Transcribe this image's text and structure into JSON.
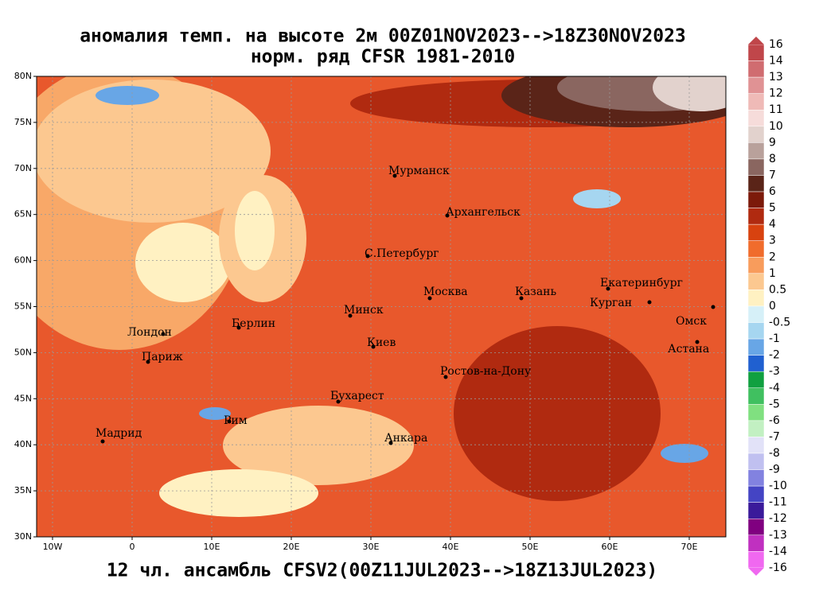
{
  "header": {
    "title_line1": "аномалия темп. на высоте 2м 00Z01NOV2023-->18Z30NOV2023",
    "title_line2": "норм. ряд CFSR 1981-2010"
  },
  "footer": "12 чл. ансамбль CFSV2(00Z11JUL2023-->18Z13JUL2023)",
  "map": {
    "xlim": [
      -12,
      74.6
    ],
    "ylim": [
      30,
      80
    ],
    "xticks": [
      {
        "value": -10,
        "label": "10W"
      },
      0,
      {
        "value": 10,
        "label": "10E"
      },
      {
        "value": 20,
        "label": "20E"
      },
      {
        "value": 30,
        "label": "30E"
      },
      {
        "value": 40,
        "label": "40E"
      },
      {
        "value": 50,
        "label": "50E"
      },
      {
        "value": 60,
        "label": "60E"
      },
      {
        "value": 70,
        "label": "70E"
      }
    ],
    "yticks": [
      {
        "value": 30,
        "label": "30N"
      },
      {
        "value": 35,
        "label": "35N"
      },
      {
        "value": 40,
        "label": "40N"
      },
      {
        "value": 45,
        "label": "45N"
      },
      {
        "value": 50,
        "label": "50N"
      },
      {
        "value": 55,
        "label": "55N"
      },
      {
        "value": 60,
        "label": "60N"
      },
      {
        "value": 65,
        "label": "65N"
      },
      {
        "value": 70,
        "label": "70N"
      },
      {
        "value": 75,
        "label": "75N"
      },
      {
        "value": 80,
        "label": "80N"
      }
    ],
    "cities": [
      "Мурманск",
      "Архангельск",
      "С.Петербург",
      "Москва",
      "Казань",
      "Екатеринбург",
      "Курган",
      "Омск",
      "Астана",
      "Минск",
      "Берлин",
      "Лондон",
      "Париж",
      "Киев",
      "Ростов-на-Дону",
      "Бухарест",
      "Рим",
      "Мадрид",
      "Анкара"
    ]
  },
  "colorbar": {
    "levels": [
      16,
      14,
      13,
      12,
      11,
      10,
      9,
      8,
      7,
      6,
      5,
      4,
      3,
      2,
      1,
      0.5,
      0,
      -0.5,
      -1,
      -2,
      -3,
      -4,
      -5,
      -6,
      -7,
      -8,
      -9,
      -10,
      -11,
      -12,
      -13,
      -14,
      -16
    ],
    "colors": [
      "#c0464a",
      "#d06c70",
      "#e09294",
      "#efbab7",
      "#f6dcda",
      "#e2d2cd",
      "#b9a19b",
      "#8a6660",
      "#5a2418",
      "#7c1a0a",
      "#b02a10",
      "#d8420f",
      "#f06c2c",
      "#f89c5c",
      "#fcc890",
      "#fff1c2",
      "#d6f0f8",
      "#a6d6f0",
      "#68a6e6",
      "#2060d0",
      "#10a040",
      "#40c060",
      "#80e080",
      "#c2f0c2",
      "#e2e2f8",
      "#c0c0f0",
      "#8282e0",
      "#4444c4",
      "#3a1a9a",
      "#800080",
      "#c030c0",
      "#f068f0"
    ]
  }
}
